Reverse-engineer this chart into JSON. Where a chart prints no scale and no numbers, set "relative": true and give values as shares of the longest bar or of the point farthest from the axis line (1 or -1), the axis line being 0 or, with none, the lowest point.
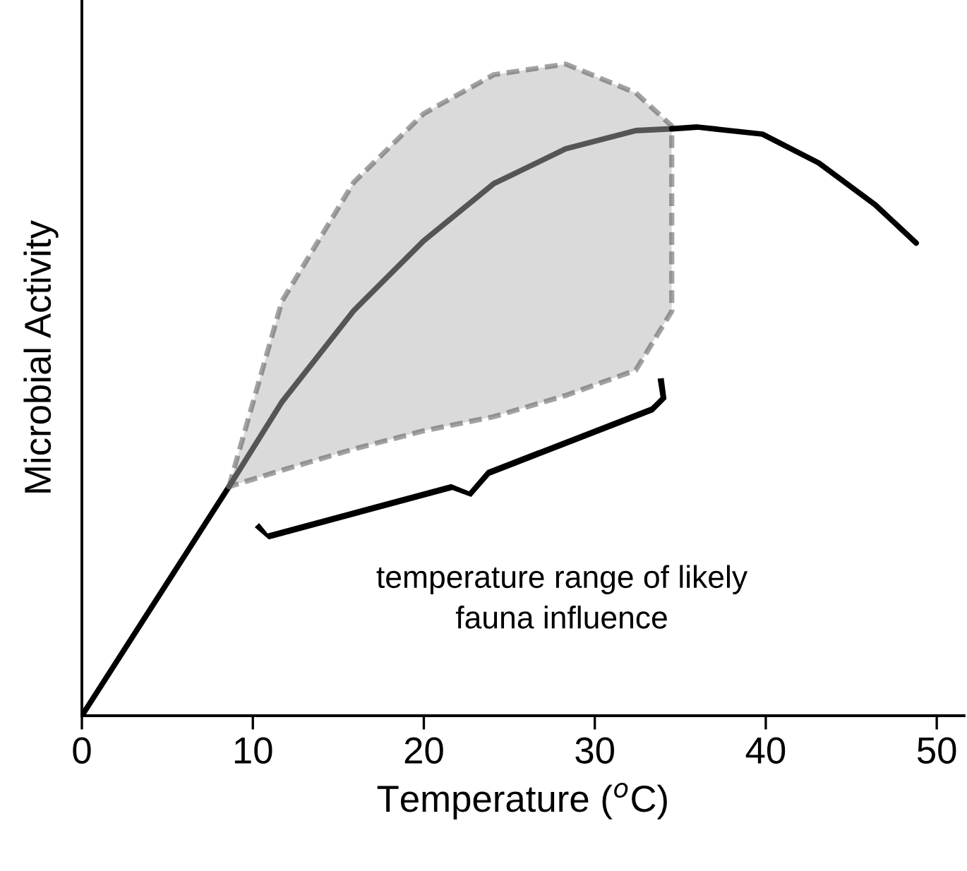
{
  "chart_data": {
    "type": "line",
    "relative": true,
    "xlabel": "Temperature ($^{o}$C)",
    "ylabel": "Microbial Activity",
    "xlim": [
      0,
      51.6
    ],
    "xticks": [
      0,
      10,
      20,
      30,
      40,
      50
    ],
    "series": [
      {
        "color": "#000000",
        "x": [
          0,
          8.6
        ],
        "values": [
          0,
          0.389
        ]
      },
      {
        "color": "#555555",
        "x": [
          8.6,
          11.7,
          15.9,
          20.0,
          24.1,
          28.3,
          32.4,
          34.5
        ],
        "values": [
          0.389,
          0.533,
          0.688,
          0.807,
          0.904,
          0.963,
          0.994,
          0.997
        ],
        "lower": [
          0.389,
          0.417,
          0.453,
          0.484,
          0.508,
          0.544,
          0.587,
          0.687
        ],
        "upper": [
          0.389,
          0.704,
          0.906,
          1.023,
          1.089,
          1.107,
          1.058,
          1.002
        ]
      },
      {
        "color": "#000000",
        "x": [
          34.5,
          36.0,
          39.8,
          43.1,
          46.4,
          48.8
        ],
        "values": [
          0.997,
          1.0,
          0.988,
          0.939,
          0.868,
          0.803
        ]
      }
    ],
    "annotations": [
      "temperature range of likely\nfauna influence"
    ]
  }
}
